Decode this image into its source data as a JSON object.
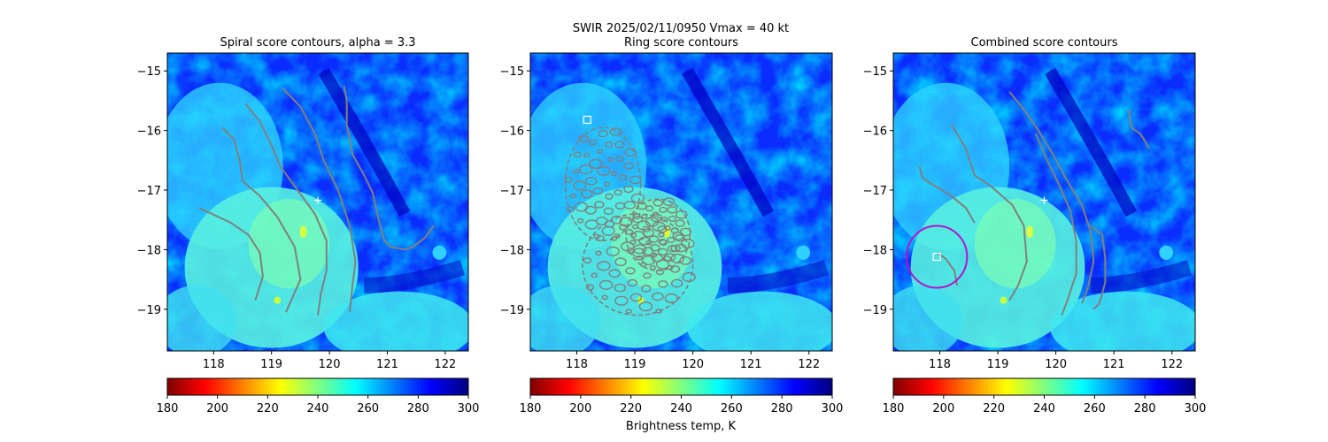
{
  "figure": {
    "suptitle_line1": "SWIR  2025/02/11/0950    Vmax = 40 kt",
    "colorbar_label": "Brightness temp, K"
  },
  "colormap": {
    "name": "jet_r",
    "stops": [
      "#800000",
      "#ff0000",
      "#ff8000",
      "#ffff00",
      "#80ff80",
      "#00ffff",
      "#0080ff",
      "#0000ff",
      "#000080"
    ]
  },
  "colors": {
    "contour": "#808080",
    "circle": "#b414cc",
    "marker": "#ffffff"
  },
  "chart_data": [
    {
      "type": "heatmap",
      "title": "Spiral score contours, alpha =  3.3",
      "xlim": [
        117.2,
        122.4
      ],
      "ylim": [
        -19.7,
        -14.7
      ],
      "xticks": [
        118,
        119,
        120,
        121,
        122
      ],
      "yticks": [
        -15,
        -16,
        -17,
        -18,
        -19
      ],
      "colorbar": {
        "range": [
          180,
          300
        ],
        "ticks": [
          180,
          200,
          220,
          240,
          260,
          280,
          300
        ]
      },
      "center_marker": {
        "shape": "plus",
        "x": 119.8,
        "y": -17.17
      },
      "contours": [
        [
          [
            117.75,
            -17.3
          ],
          [
            118.3,
            -17.55
          ],
          [
            118.6,
            -17.75
          ],
          [
            118.8,
            -18.05
          ],
          [
            118.85,
            -18.45
          ],
          [
            118.72,
            -18.85
          ]
        ],
        [
          [
            118.15,
            -15.95
          ],
          [
            118.35,
            -16.15
          ],
          [
            118.45,
            -16.5
          ],
          [
            118.5,
            -16.85
          ],
          [
            118.8,
            -17.1
          ],
          [
            119.1,
            -17.45
          ],
          [
            119.4,
            -17.95
          ],
          [
            119.5,
            -18.5
          ],
          [
            119.25,
            -19.05
          ]
        ],
        [
          [
            118.55,
            -15.55
          ],
          [
            118.8,
            -15.85
          ],
          [
            119.0,
            -16.25
          ],
          [
            119.15,
            -16.6
          ],
          [
            119.45,
            -17.0
          ],
          [
            119.75,
            -17.4
          ],
          [
            119.95,
            -17.85
          ],
          [
            119.95,
            -18.35
          ],
          [
            119.85,
            -18.75
          ],
          [
            119.8,
            -19.1
          ]
        ],
        [
          [
            119.2,
            -15.3
          ],
          [
            119.5,
            -15.6
          ],
          [
            119.75,
            -16.05
          ],
          [
            119.9,
            -16.5
          ],
          [
            120.15,
            -17.0
          ],
          [
            120.35,
            -17.6
          ],
          [
            120.45,
            -18.2
          ],
          [
            120.4,
            -18.6
          ],
          [
            120.35,
            -19.05
          ]
        ],
        [
          [
            120.25,
            -15.25
          ],
          [
            120.3,
            -15.5
          ],
          [
            120.3,
            -15.9
          ],
          [
            120.4,
            -16.4
          ],
          [
            120.6,
            -16.75
          ],
          [
            120.75,
            -17.05
          ],
          [
            120.85,
            -17.5
          ],
          [
            120.95,
            -17.85
          ],
          [
            121.05,
            -17.95
          ],
          [
            121.3,
            -18.0
          ],
          [
            121.45,
            -17.95
          ],
          [
            121.65,
            -17.8
          ],
          [
            121.8,
            -17.6
          ]
        ]
      ]
    },
    {
      "type": "heatmap",
      "title": "Ring score contours",
      "xlim": [
        117.2,
        122.4
      ],
      "ylim": [
        -19.7,
        -14.7
      ],
      "xticks": [
        118,
        119,
        120,
        121,
        122
      ],
      "yticks": [
        -15,
        -16,
        -17,
        -18,
        -19
      ],
      "colorbar": {
        "range": [
          180,
          300
        ],
        "ticks": [
          180,
          200,
          220,
          240,
          260,
          280,
          300
        ]
      },
      "ring_max_marker": {
        "shape": "square",
        "x": 118.18,
        "y": -15.82
      },
      "ring_regions": [
        {
          "cx": 118.45,
          "cy": -16.9,
          "rx": 0.65,
          "ry": 0.95
        },
        {
          "cx": 119.05,
          "cy": -18.25,
          "rx": 0.95,
          "ry": 0.85
        },
        {
          "cx": 119.4,
          "cy": -17.75,
          "rx": 0.55,
          "ry": 0.6
        }
      ]
    },
    {
      "type": "heatmap",
      "title": "Combined score contours",
      "xlim": [
        117.2,
        122.4
      ],
      "ylim": [
        -19.7,
        -14.7
      ],
      "xticks": [
        118,
        119,
        120,
        121,
        122
      ],
      "yticks": [
        -15,
        -16,
        -17,
        -18,
        -19
      ],
      "colorbar": {
        "range": [
          180,
          300
        ],
        "ticks": [
          180,
          200,
          220,
          240,
          260,
          280,
          300
        ]
      },
      "center_marker": {
        "shape": "plus",
        "x": 119.8,
        "y": -17.17
      },
      "best_marker": {
        "shape": "square",
        "x": 117.95,
        "y": -18.12
      },
      "search_circle": {
        "cx": 117.95,
        "cy": -18.12,
        "r": 0.52
      },
      "contours": [
        [
          [
            117.65,
            -16.6
          ],
          [
            117.7,
            -16.8
          ],
          [
            117.95,
            -16.95
          ],
          [
            118.2,
            -17.1
          ],
          [
            118.45,
            -17.3
          ],
          [
            118.6,
            -17.55
          ]
        ],
        [
          [
            117.95,
            -18.05
          ],
          [
            118.1,
            -18.15
          ],
          [
            118.25,
            -18.35
          ],
          [
            118.3,
            -18.6
          ]
        ],
        [
          [
            118.2,
            -15.9
          ],
          [
            118.45,
            -16.3
          ],
          [
            118.6,
            -16.75
          ],
          [
            118.9,
            -16.95
          ],
          [
            119.25,
            -17.25
          ],
          [
            119.45,
            -17.6
          ],
          [
            119.5,
            -18.2
          ],
          [
            119.35,
            -18.6
          ],
          [
            119.2,
            -18.85
          ]
        ],
        [
          [
            119.2,
            -15.35
          ],
          [
            119.45,
            -15.65
          ],
          [
            119.7,
            -16.0
          ],
          [
            119.95,
            -16.4
          ],
          [
            120.2,
            -16.85
          ],
          [
            120.45,
            -17.25
          ],
          [
            120.6,
            -17.7
          ],
          [
            120.65,
            -18.2
          ],
          [
            120.55,
            -18.65
          ],
          [
            120.45,
            -18.9
          ]
        ],
        [
          [
            119.65,
            -16.05
          ],
          [
            119.85,
            -16.5
          ],
          [
            120.05,
            -16.9
          ],
          [
            120.25,
            -17.35
          ],
          [
            120.35,
            -17.85
          ],
          [
            120.35,
            -18.4
          ],
          [
            120.2,
            -18.85
          ],
          [
            120.1,
            -19.1
          ]
        ],
        [
          [
            120.6,
            -17.6
          ],
          [
            120.8,
            -17.75
          ],
          [
            120.85,
            -18.15
          ],
          [
            120.85,
            -18.55
          ],
          [
            120.75,
            -18.9
          ],
          [
            120.65,
            -19.0
          ]
        ],
        [
          [
            121.25,
            -15.65
          ],
          [
            121.3,
            -15.95
          ],
          [
            121.45,
            -16.05
          ],
          [
            121.55,
            -16.2
          ],
          [
            121.6,
            -16.3
          ]
        ]
      ]
    }
  ]
}
